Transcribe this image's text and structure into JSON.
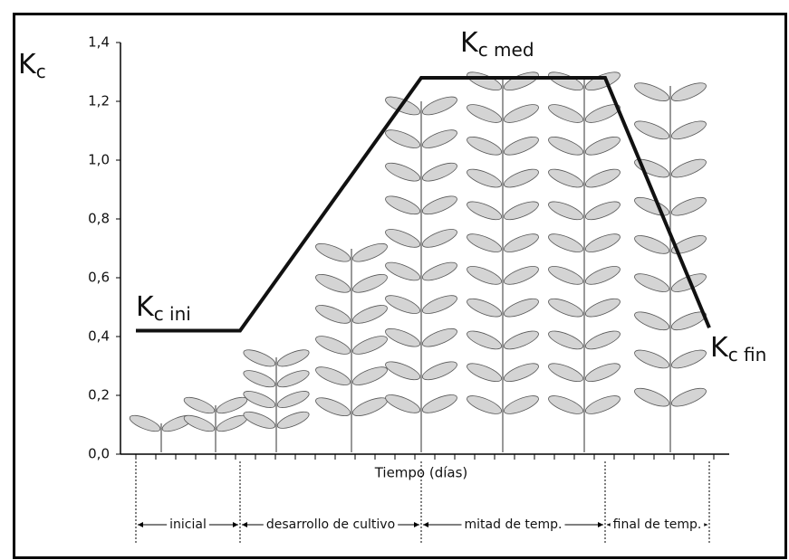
{
  "chart_data": {
    "type": "line",
    "ylabel": {
      "main": "K",
      "sub": "c"
    },
    "xlabel": "Tiempo (días)",
    "stages": [
      "inicial",
      "desarrollo de cultivo",
      "mitad de temp.",
      "final de temp."
    ],
    "values": [
      0.42,
      0.42,
      1.28,
      1.28,
      0.43
    ],
    "color": "#111111",
    "ylim": [
      0,
      1.4
    ],
    "yticks": [
      {
        "value": 0,
        "label": "0,0"
      },
      {
        "value": 0.2,
        "label": "0,2"
      },
      {
        "value": 0.4,
        "label": "0,4"
      },
      {
        "value": 0.6,
        "label": "0,6"
      },
      {
        "value": 0.8,
        "label": "0,8"
      },
      {
        "value": 1.0,
        "label": "1,0"
      },
      {
        "value": 1.2,
        "label": "1,2"
      },
      {
        "value": 1.4,
        "label": "1,4"
      }
    ],
    "annotations": [
      {
        "main": "K",
        "sub": "c ini"
      },
      {
        "main": "K",
        "sub": "c med"
      },
      {
        "main": "K",
        "sub": "c fin"
      }
    ]
  }
}
